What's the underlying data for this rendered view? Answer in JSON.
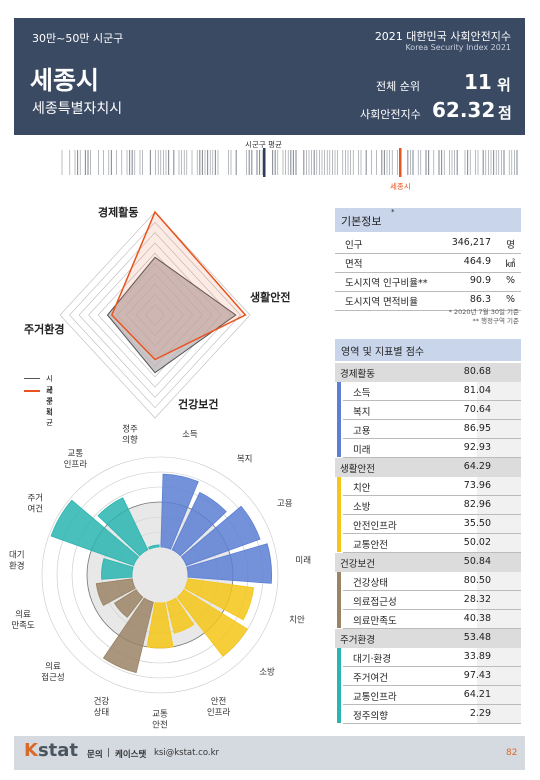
{
  "header": {
    "group": "30만~50만 시군구",
    "year_title": "2021 대한민국 사회안전지수",
    "year_subtitle": "Korea Security Index 2021",
    "city": "세종시",
    "city_full": "세종특별자치시",
    "rank_label": "전체 순위",
    "rank_value": "11",
    "rank_unit": "위",
    "score_label": "사회안전지수",
    "score_value": "62.32",
    "score_unit": "점"
  },
  "barcode": {
    "avg_label": "시군구 평균",
    "city_label": "세종시",
    "avg_color": "#2e3e5c",
    "city_color": "#e8541e"
  },
  "radar": {
    "axes": [
      "경제활동",
      "생활안전",
      "건강보건",
      "주거환경"
    ],
    "legend": [
      {
        "label": "시군구 평균",
        "color": "#555555"
      },
      {
        "label": "세종시",
        "color": "#e8541e"
      }
    ]
  },
  "polar": {
    "labels": [
      "소득",
      "복지",
      "고용",
      "미래",
      "치안",
      "소방",
      "안전\n인프라",
      "교통\n안전",
      "건강\n상태",
      "의료\n접근성",
      "의료\n만족도",
      "대기\n환경",
      "주거\n여건",
      "교통\n인프라",
      "정주\n의향"
    ]
  },
  "chart_data": {
    "type": "polar-bar",
    "categories": [
      "소득",
      "복지",
      "고용",
      "미래",
      "치안",
      "소방",
      "안전인프라",
      "교통안전",
      "건강상태",
      "의료접근성",
      "의료만족도",
      "대기환경",
      "주거여건",
      "교통인프라",
      "정주의향"
    ],
    "values": [
      81.04,
      70.64,
      86.95,
      92.93,
      73.96,
      82.96,
      35.5,
      50.02,
      80.5,
      28.32,
      40.38,
      33.89,
      97.43,
      64.21,
      2.29
    ],
    "groups": [
      "경제활동",
      "경제활동",
      "경제활동",
      "경제활동",
      "생활안전",
      "생활안전",
      "생활안전",
      "생활안전",
      "건강보건",
      "건강보건",
      "건강보건",
      "주거환경",
      "주거환경",
      "주거환경",
      "주거환경"
    ],
    "group_colors": {
      "경제활동": "#5b7fd4",
      "생활안전": "#f5c518",
      "건강보건": "#9a8466",
      "주거환경": "#2ab5b0"
    },
    "radar_series": [
      {
        "name": "시군구 평균"
      },
      {
        "name": "세종시",
        "values": [
          80.68,
          64.29,
          50.84,
          53.48
        ]
      }
    ]
  },
  "basic_info": {
    "title": "기본정보",
    "title_sup": "*",
    "rows": [
      {
        "label": "인구",
        "value": "346,217",
        "unit": "명"
      },
      {
        "label": "면적",
        "value": "464.9",
        "unit": "㎢"
      },
      {
        "label": "도시지역 인구비율**",
        "value": "90.9",
        "unit": "%"
      },
      {
        "label": "도시지역 면적비율",
        "value": "86.3",
        "unit": "%"
      }
    ],
    "note1": "* 2020년 7월 30일 기준",
    "note2": "** 행정구역 기준"
  },
  "scores": {
    "title": "영역 및 지표별 점수",
    "sections": [
      {
        "name": "경제활동",
        "score": "80.68",
        "color": "#5b7fd4",
        "items": [
          {
            "name": "소득",
            "score": "81.04"
          },
          {
            "name": "복지",
            "score": "70.64"
          },
          {
            "name": "고용",
            "score": "86.95"
          },
          {
            "name": "미래",
            "score": "92.93"
          }
        ]
      },
      {
        "name": "생활안전",
        "score": "64.29",
        "color": "#f5c518",
        "items": [
          {
            "name": "치안",
            "score": "73.96"
          },
          {
            "name": "소방",
            "score": "82.96"
          },
          {
            "name": "안전인프라",
            "score": "35.50"
          },
          {
            "name": "교통안전",
            "score": "50.02"
          }
        ]
      },
      {
        "name": "건강보건",
        "score": "50.84",
        "color": "#9a8466",
        "items": [
          {
            "name": "건강상태",
            "score": "80.50"
          },
          {
            "name": "의료접근성",
            "score": "28.32"
          },
          {
            "name": "의료만족도",
            "score": "40.38"
          }
        ]
      },
      {
        "name": "주거환경",
        "score": "53.48",
        "color": "#2ab5b0",
        "items": [
          {
            "name": "대기·환경",
            "score": "33.89"
          },
          {
            "name": "주거여건",
            "score": "97.43"
          },
          {
            "name": "교통인프라",
            "score": "64.21"
          },
          {
            "name": "정주의향",
            "score": "2.29"
          }
        ]
      }
    ]
  },
  "footer": {
    "logo": "Kstat",
    "contact_label": "문의",
    "contact_org": "케이스탯",
    "contact_email": "ksi@kstat.co.kr",
    "page": "82"
  }
}
